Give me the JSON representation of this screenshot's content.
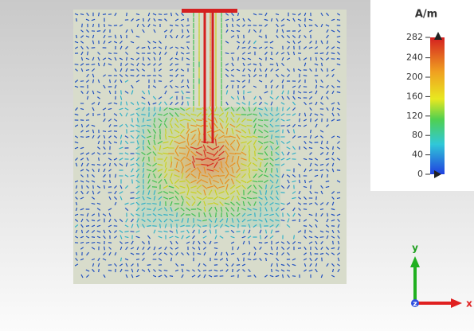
{
  "legend": {
    "unit": "A/m",
    "ticks": [
      282,
      240,
      200,
      160,
      120,
      80,
      40,
      0
    ]
  },
  "axes": {
    "y": "y",
    "x": "x",
    "z": "z"
  }
}
